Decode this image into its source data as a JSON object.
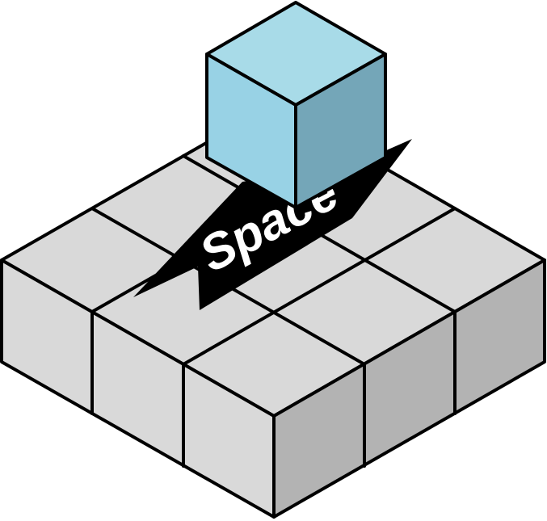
{
  "diagram": {
    "label": "Space",
    "grid": {
      "rows": 3,
      "cols": 3
    },
    "colors": {
      "background": "#ffffff",
      "grid_top": "#d9d9d9",
      "grid_left": "#d9d9d9",
      "grid_right": "#b3b3b3",
      "cube_top": "#a8dbe8",
      "cube_left": "#98d2e5",
      "cube_right": "#74a6b8",
      "stroke": "#000000",
      "label_band": "#000000",
      "label_text": "#ffffff"
    }
  }
}
